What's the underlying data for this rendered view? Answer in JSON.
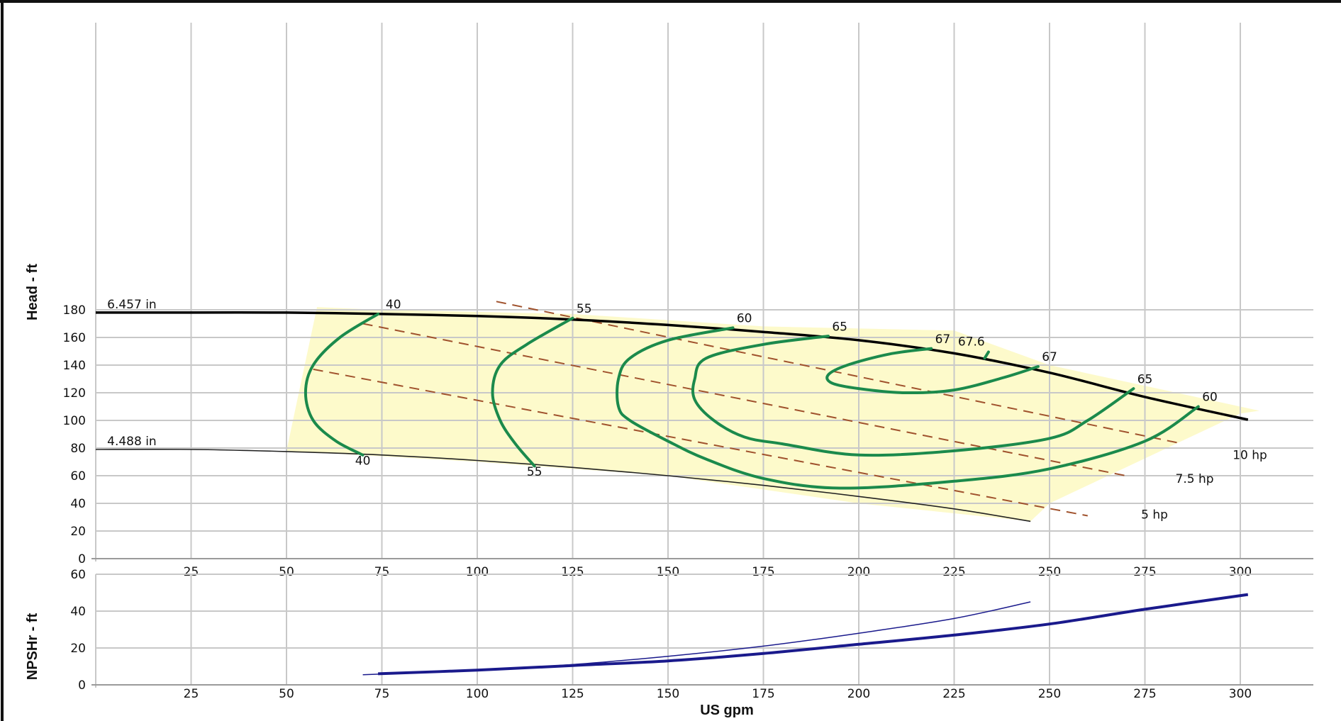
{
  "chart_data": [
    {
      "type": "line",
      "ylabel": "Head - ft",
      "xlim": [
        0,
        325
      ],
      "ylim": [
        0,
        200
      ],
      "x_ticks": [
        25,
        50,
        75,
        100,
        125,
        150,
        175,
        200,
        225,
        250,
        275,
        300
      ],
      "y_ticks": [
        0,
        20,
        40,
        60,
        80,
        100,
        120,
        140,
        160,
        180
      ],
      "grid": true,
      "region_color": "#fdfacb",
      "region_outline": [
        [
          58,
          182
        ],
        [
          74,
          180
        ],
        [
          125,
          177
        ],
        [
          175,
          168
        ],
        [
          225,
          165
        ],
        [
          250,
          140
        ],
        [
          300,
          110
        ],
        [
          305,
          107
        ],
        [
          300,
          105
        ],
        [
          250,
          40
        ],
        [
          245,
          27
        ],
        [
          200,
          40
        ],
        [
          150,
          60
        ],
        [
          100,
          70
        ],
        [
          50,
          78
        ],
        [
          58,
          182
        ]
      ],
      "impeller_curves": [
        {
          "name": "6.457 in",
          "color": "#000000",
          "points": [
            [
              0,
              178
            ],
            [
              25,
              178
            ],
            [
              50,
              178
            ],
            [
              75,
              177
            ],
            [
              100,
              175.5
            ],
            [
              125,
              173
            ],
            [
              150,
              169
            ],
            [
              175,
              164
            ],
            [
              200,
              158
            ],
            [
              225,
              148.5
            ],
            [
              250,
              134.5
            ],
            [
              275,
              117
            ],
            [
              302,
              100.5
            ]
          ]
        },
        {
          "name": "4.488 in",
          "color": "#222222",
          "points": [
            [
              0,
              79
            ],
            [
              25,
              79
            ],
            [
              50,
              77.5
            ],
            [
              75,
              75
            ],
            [
              100,
              71
            ],
            [
              125,
              66
            ],
            [
              150,
              60
            ],
            [
              175,
              53
            ],
            [
              200,
              45
            ],
            [
              225,
              36
            ],
            [
              245,
              27
            ]
          ]
        }
      ],
      "efficiency_color": "#1b8a4c",
      "efficiency_curves": [
        {
          "points": [
            [
              74,
              177
            ],
            [
              64,
              160
            ],
            [
              57,
              140
            ],
            [
              55,
              120
            ],
            [
              57,
              100
            ],
            [
              63,
              85
            ],
            [
              70,
              75
            ]
          ]
        },
        {
          "points": [
            [
              125,
              174
            ],
            [
              113,
              155
            ],
            [
              106,
              140
            ],
            [
              104,
              120
            ],
            [
              106,
              100
            ],
            [
              110,
              83
            ],
            [
              115,
              67
            ]
          ]
        },
        {
          "points": [
            [
              167,
              167
            ],
            [
              150,
              158
            ],
            [
              140,
              145
            ],
            [
              137,
              130
            ],
            [
              137,
              110
            ],
            [
              140,
              100
            ],
            [
              150,
              85
            ],
            [
              160,
              72
            ],
            [
              175,
              58
            ],
            [
              195,
              51
            ],
            [
              225,
              56
            ],
            [
              250,
              65
            ],
            [
              275,
              85
            ],
            [
              289,
              110
            ]
          ]
        },
        {
          "points": [
            [
              192,
              161
            ],
            [
              175,
              155
            ],
            [
              160,
              145
            ],
            [
              157,
              130
            ],
            [
              157,
              115
            ],
            [
              162,
              100
            ],
            [
              170,
              88
            ],
            [
              180,
              83
            ],
            [
              200,
              75
            ],
            [
              225,
              78
            ],
            [
              250,
              87
            ],
            [
              260,
              100
            ],
            [
              272,
              123
            ]
          ]
        },
        {
          "points": [
            [
              219,
              152
            ],
            [
              208,
              148
            ],
            [
              197,
              140
            ],
            [
              192,
              133
            ],
            [
              193,
              127
            ],
            [
              200,
              123
            ],
            [
              212,
              120
            ],
            [
              225,
              122
            ],
            [
              238,
              131
            ],
            [
              247,
              139
            ]
          ]
        },
        {
          "points": [
            [
              234,
              149.5
            ],
            [
              233,
              145
            ]
          ]
        }
      ],
      "efficiency_labels": [
        {
          "text": "40",
          "x": 76,
          "y": 181,
          "anchor": "start"
        },
        {
          "text": "55",
          "x": 126,
          "y": 178,
          "anchor": "start"
        },
        {
          "text": "60",
          "x": 168,
          "y": 171,
          "anchor": "start"
        },
        {
          "text": "65",
          "x": 193,
          "y": 165,
          "anchor": "start"
        },
        {
          "text": "67",
          "x": 220,
          "y": 156,
          "anchor": "start"
        },
        {
          "text": "67.6",
          "x": 226,
          "y": 154,
          "anchor": "start"
        },
        {
          "text": "67",
          "x": 248,
          "y": 143,
          "anchor": "start"
        },
        {
          "text": "65",
          "x": 273,
          "y": 127,
          "anchor": "start"
        },
        {
          "text": "60",
          "x": 290,
          "y": 114,
          "anchor": "start"
        },
        {
          "text": "40",
          "x": 70,
          "y": 68,
          "anchor": "middle"
        },
        {
          "text": "55",
          "x": 115,
          "y": 60,
          "anchor": "middle"
        }
      ],
      "power_color": "#a0522d",
      "power_lines": [
        {
          "name": "10 hp",
          "points": [
            [
              105,
              186
            ],
            [
              285,
              83
            ]
          ]
        },
        {
          "name": "7.5 hp",
          "points": [
            [
              70,
              170
            ],
            [
              270,
              60
            ]
          ]
        },
        {
          "name": "5 hp",
          "points": [
            [
              57,
              137
            ],
            [
              260,
              31
            ]
          ]
        }
      ],
      "power_labels": [
        {
          "text": "10 hp",
          "x": 298,
          "y": 72
        },
        {
          "text": "7.5 hp",
          "x": 283,
          "y": 55
        },
        {
          "text": "5 hp",
          "x": 274,
          "y": 29
        }
      ],
      "impeller_labels": [
        {
          "text": "6.457 in",
          "x": 3,
          "y": 181
        },
        {
          "text": "4.488 in",
          "x": 3,
          "y": 82
        }
      ]
    },
    {
      "type": "line",
      "xlabel": "US gpm",
      "ylabel": "NPSHr - ft",
      "xlim": [
        0,
        325
      ],
      "ylim": [
        0,
        60
      ],
      "x_ticks": [
        25,
        50,
        75,
        100,
        125,
        150,
        175,
        200,
        225,
        250,
        275,
        300
      ],
      "y_ticks": [
        0,
        20,
        40,
        60
      ],
      "grid": true,
      "series_color": "#1a1a8c",
      "series": [
        {
          "points": [
            [
              74,
              6
            ],
            [
              100,
              8
            ],
            [
              125,
              10.5
            ],
            [
              150,
              13
            ],
            [
              175,
              17
            ],
            [
              200,
              22
            ],
            [
              225,
              27
            ],
            [
              250,
              33
            ],
            [
              275,
              41
            ],
            [
              302,
              49
            ]
          ],
          "width": 4
        },
        {
          "points": [
            [
              70,
              5.5
            ],
            [
              100,
              8
            ],
            [
              125,
              11
            ],
            [
              150,
              15.5
            ],
            [
              175,
              21
            ],
            [
              200,
              28
            ],
            [
              225,
              36
            ],
            [
              245,
              45
            ]
          ],
          "width": 1.5
        }
      ]
    }
  ]
}
